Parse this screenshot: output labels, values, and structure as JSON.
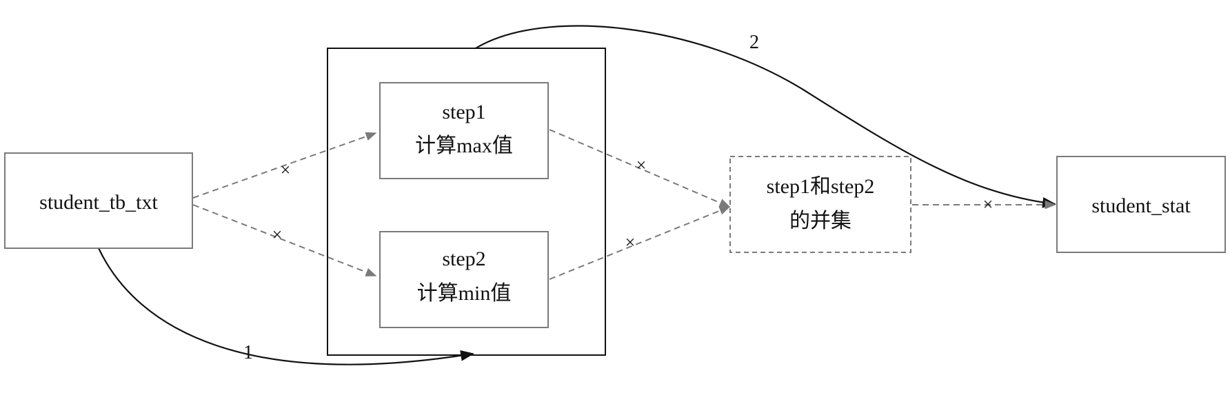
{
  "diagram": {
    "nodes": {
      "source": {
        "label": "student_tb_txt"
      },
      "step1": {
        "line1": "step1",
        "line2": "计算max值"
      },
      "step2": {
        "line1": "step2",
        "line2": "计算min值"
      },
      "union": {
        "line1": "step1和step2",
        "line2": "的并集"
      },
      "target": {
        "label": "student_stat"
      }
    },
    "edge_labels": {
      "flow1": "1",
      "flow2": "2"
    },
    "marker_glyph": "×"
  },
  "colors": {
    "box_stroke": "#7a7a7a",
    "container_stroke": "#111111",
    "dashed_edge": "#7a7a7a",
    "solid_edge": "#111111",
    "text": "#111111"
  }
}
